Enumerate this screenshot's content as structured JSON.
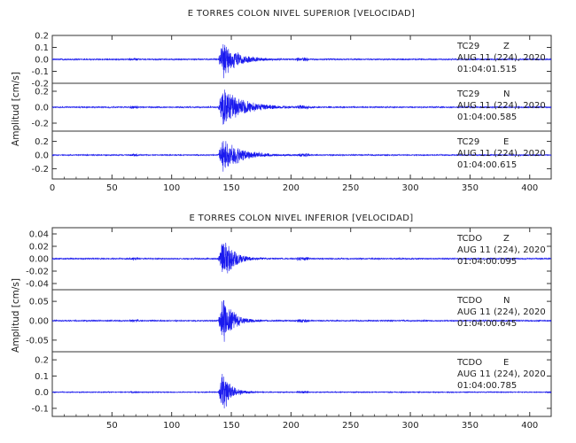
{
  "trace_color": "#1a1aee",
  "axis_color": "#333333",
  "chart_data": [
    {
      "type": "line",
      "title": "E TORRES COLON NIVEL SUPERIOR [VELOCIDAD]",
      "ylabel": "Amplitud [cm/s]",
      "xlim": [
        0,
        418
      ],
      "x_ticks": [
        0,
        50,
        100,
        150,
        200,
        250,
        300,
        350,
        400
      ],
      "x_tick_labels": [
        "0",
        "50",
        "100",
        "150",
        "200",
        "250",
        "300",
        "350",
        "400"
      ],
      "traces": [
        {
          "station": "TC29",
          "component": "Z",
          "date": "AUG 11 (224), 2020",
          "time": "01:04:01.515",
          "ylim": [
            -0.2,
            0.2
          ],
          "y_ticks": [
            -0.2,
            -0.1,
            0.0,
            0.1,
            0.2
          ],
          "y_tick_labels": [
            "-0.2",
            "-0.1",
            "0.0",
            "0.1",
            "0.2"
          ],
          "onset": 139,
          "peak": 0.17,
          "decay": 12,
          "noise": 0.004
        },
        {
          "station": "TC29",
          "component": "N",
          "date": "AUG 11 (224), 2020",
          "time": "01:04:00.585",
          "ylim": [
            -0.3,
            0.3
          ],
          "y_ticks": [
            -0.2,
            0.0,
            0.2
          ],
          "y_tick_labels": [
            "-0.2",
            "0.0",
            "0.2"
          ],
          "onset": 139,
          "peak": 0.28,
          "decay": 16,
          "noise": 0.006
        },
        {
          "station": "TC29",
          "component": "E",
          "date": "AUG 11 (224), 2020",
          "time": "01:04:00.615",
          "ylim": [
            -0.35,
            0.35
          ],
          "y_ticks": [
            -0.2,
            0.0,
            0.2
          ],
          "y_tick_labels": [
            "-0.2",
            "0.0",
            "0.2"
          ],
          "onset": 139,
          "peak": 0.3,
          "decay": 14,
          "noise": 0.006
        }
      ]
    },
    {
      "type": "line",
      "title": "E TORRES COLON NIVEL INFERIOR [VELOCIDAD]",
      "ylabel": "Amplitud [cm/s]",
      "xlim": [
        0,
        418
      ],
      "x_ticks": [
        50,
        100,
        150,
        200,
        250,
        300,
        350,
        400
      ],
      "x_tick_labels": [
        "50",
        "100",
        "150",
        "200",
        "250",
        "300",
        "350",
        "400"
      ],
      "traces": [
        {
          "station": "TCDO",
          "component": "Z",
          "date": "AUG 11 (224), 2020",
          "time": "01:04:00.095",
          "ylim": [
            -0.05,
            0.05
          ],
          "y_ticks": [
            -0.04,
            -0.02,
            0.0,
            0.02,
            0.04
          ],
          "y_tick_labels": [
            "-0.04",
            "-0.02",
            "0.00",
            "0.02",
            "0.04"
          ],
          "onset": 139,
          "peak": 0.045,
          "decay": 8,
          "noise": 0.0008
        },
        {
          "station": "TCDO",
          "component": "N",
          "date": "AUG 11 (224), 2020",
          "time": "01:04:00.645",
          "ylim": [
            -0.08,
            0.08
          ],
          "y_ticks": [
            -0.05,
            0.0,
            0.05
          ],
          "y_tick_labels": [
            "-0.05",
            "0.00",
            "0.05"
          ],
          "onset": 139,
          "peak": 0.07,
          "decay": 8,
          "noise": 0.0012
        },
        {
          "station": "TCDO",
          "component": "E",
          "date": "AUG 11 (224), 2020",
          "time": "01:04:00.785",
          "ylim": [
            -0.15,
            0.25
          ],
          "y_ticks": [
            -0.1,
            0.0,
            0.1,
            0.2
          ],
          "y_tick_labels": [
            "-0.1",
            "0.0",
            "0.1",
            "0.2"
          ],
          "onset": 139,
          "peak": 0.14,
          "decay": 7,
          "noise": 0.002
        }
      ]
    }
  ]
}
